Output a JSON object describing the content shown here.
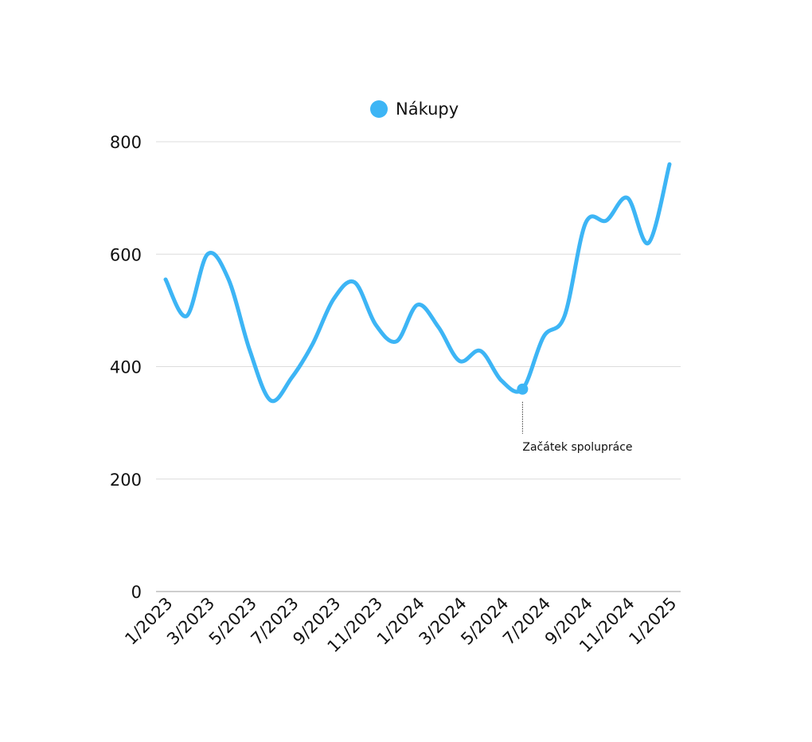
{
  "chart_data": {
    "type": "line",
    "x": [
      "1/2023",
      "2/2023",
      "3/2023",
      "4/2023",
      "5/2023",
      "6/2023",
      "7/2023",
      "8/2023",
      "9/2023",
      "10/2023",
      "11/2023",
      "12/2023",
      "1/2024",
      "2/2024",
      "3/2024",
      "4/2024",
      "5/2024",
      "6/2024",
      "7/2024",
      "8/2024",
      "9/2024",
      "10/2024",
      "11/2024",
      "12/2024",
      "1/2025"
    ],
    "x_tick_labels": [
      "1/2023",
      "3/2023",
      "5/2023",
      "7/2023",
      "9/2023",
      "11/2023",
      "1/2024",
      "3/2024",
      "5/2024",
      "7/2024",
      "9/2024",
      "11/2024",
      "1/2025"
    ],
    "series": [
      {
        "name": "Nákupy",
        "color": "#3db5f5",
        "values": [
          555,
          490,
          600,
          555,
          430,
          340,
          380,
          440,
          520,
          550,
          475,
          445,
          510,
          470,
          410,
          428,
          375,
          360,
          453,
          490,
          655,
          660,
          700,
          620,
          760
        ]
      }
    ],
    "y_ticks": [
      0,
      200,
      400,
      600,
      800
    ],
    "ylim": [
      0,
      800
    ],
    "grid": true,
    "legend_position": "top-center",
    "annotations": [
      {
        "x": "6/2024",
        "y": 360,
        "label": "Začátek spolupráce"
      }
    ]
  }
}
